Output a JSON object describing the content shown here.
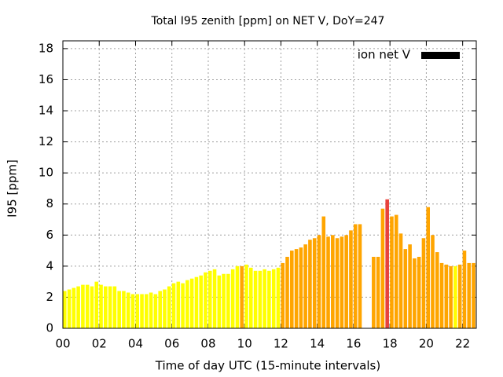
{
  "chart_data": {
    "type": "bar",
    "title": "Total I95 zenith [ppm] on NET V, DoY=247",
    "xlabel": "Time of day UTC (15-minute intervals)",
    "ylabel": "I95 [ppm]",
    "x": [
      0,
      0.25,
      0.5,
      0.75,
      1,
      1.25,
      1.5,
      1.75,
      2,
      2.25,
      2.5,
      2.75,
      3,
      3.25,
      3.5,
      3.75,
      4,
      4.25,
      4.5,
      4.75,
      5,
      5.25,
      5.5,
      5.75,
      6,
      6.25,
      6.5,
      6.75,
      7,
      7.25,
      7.5,
      7.75,
      8,
      8.25,
      8.5,
      8.75,
      9,
      9.25,
      9.5,
      9.75,
      10,
      10.25,
      10.5,
      10.75,
      11,
      11.25,
      11.5,
      11.75,
      12,
      12.25,
      12.5,
      12.75,
      13,
      13.25,
      13.5,
      13.75,
      14,
      14.25,
      14.5,
      14.75,
      15,
      15.25,
      15.5,
      15.75,
      16,
      16.25,
      16.5,
      16.75,
      17,
      17.25,
      17.5,
      17.75,
      18,
      18.25,
      18.5,
      18.75,
      19,
      19.25,
      19.5,
      19.75,
      20,
      20.25,
      20.5,
      20.75,
      21,
      21.25,
      21.5,
      21.75,
      22,
      22.25,
      22.5
    ],
    "series": [
      {
        "name": "ion net V",
        "color": "#000000",
        "values": [
          2.4,
          2.5,
          2.6,
          2.7,
          2.8,
          2.8,
          2.7,
          3.0,
          2.8,
          2.7,
          2.7,
          2.7,
          2.4,
          2.4,
          2.3,
          2.2,
          2.2,
          2.2,
          2.2,
          2.3,
          2.2,
          2.4,
          2.5,
          2.7,
          2.9,
          3.0,
          2.9,
          3.1,
          3.2,
          3.3,
          3.4,
          3.6,
          3.7,
          3.8,
          3.4,
          3.5,
          3.5,
          3.8,
          4.0,
          4.0,
          4.1,
          3.9,
          3.7,
          3.7,
          3.8,
          3.7,
          3.8,
          3.9,
          4.2,
          4.6,
          5.0,
          5.1,
          5.2,
          5.4,
          5.7,
          5.8,
          6.0,
          7.2,
          5.9,
          6.0,
          5.8,
          5.9,
          6.0,
          6.3,
          6.7,
          6.7,
          null,
          null,
          4.6,
          4.6,
          7.7,
          8.3,
          7.2,
          7.3,
          6.1,
          5.1,
          5.4,
          4.5,
          4.6,
          5.8,
          7.8,
          6.0,
          4.9,
          4.2,
          4.1,
          4.0,
          4.0,
          4.1,
          5.0,
          4.2,
          4.2
        ],
        "colors": [
          "#ffff00",
          "#ffff00",
          "#ffff00",
          "#ffff00",
          "#ffff00",
          "#ffff00",
          "#ffff00",
          "#ffff00",
          "#ffff00",
          "#ffff00",
          "#ffff00",
          "#ffff00",
          "#ffff00",
          "#ffff00",
          "#ffff00",
          "#ffff00",
          "#ffff00",
          "#ffff00",
          "#ffff00",
          "#ffff00",
          "#ffff00",
          "#ffff00",
          "#ffff00",
          "#ffff00",
          "#ffff00",
          "#ffff00",
          "#ffff00",
          "#ffff00",
          "#ffff00",
          "#ffff00",
          "#ffff00",
          "#ffff00",
          "#ffff00",
          "#ffff00",
          "#ffff00",
          "#ffff00",
          "#ffff00",
          "#ffff00",
          "#ffff00",
          "#ffa500",
          "#ffff00",
          "#ffff00",
          "#ffff00",
          "#ffff00",
          "#ffff00",
          "#ffff00",
          "#ffff00",
          "#ffff00",
          "#ffa500",
          "#ffa500",
          "#ffa500",
          "#ffa500",
          "#ffa500",
          "#ffa500",
          "#ffa500",
          "#ffa500",
          "#ffa500",
          "#ffa500",
          "#ffa500",
          "#ffa500",
          "#ffa500",
          "#ffa500",
          "#ffa500",
          "#ffa500",
          "#ffa500",
          "#ffa500",
          null,
          null,
          "#ffa500",
          "#ffa500",
          "#ffa500",
          "#e8423c",
          "#ffa500",
          "#ffa500",
          "#ffa500",
          "#ffa500",
          "#ffa500",
          "#ffa500",
          "#ffa500",
          "#ffa500",
          "#ffa500",
          "#ffa500",
          "#ffa500",
          "#ffa500",
          "#ffa500",
          "#ffa500",
          "#ffff00",
          "#ffa500",
          "#ffa500",
          "#ffa500",
          "#ffa500"
        ]
      }
    ],
    "bar_width": 0.25,
    "xlim": [
      0,
      22.75
    ],
    "ylim": [
      0,
      18.5
    ],
    "xticks": [
      {
        "value": 0,
        "label": "00"
      },
      {
        "value": 2,
        "label": "02"
      },
      {
        "value": 4,
        "label": "04"
      },
      {
        "value": 6,
        "label": "06"
      },
      {
        "value": 8,
        "label": "08"
      },
      10,
      12,
      14,
      16,
      18,
      20,
      22
    ],
    "yticks": [
      0,
      2,
      4,
      6,
      8,
      10,
      12,
      14,
      16,
      18
    ],
    "grid": true,
    "legend": "top-right"
  }
}
